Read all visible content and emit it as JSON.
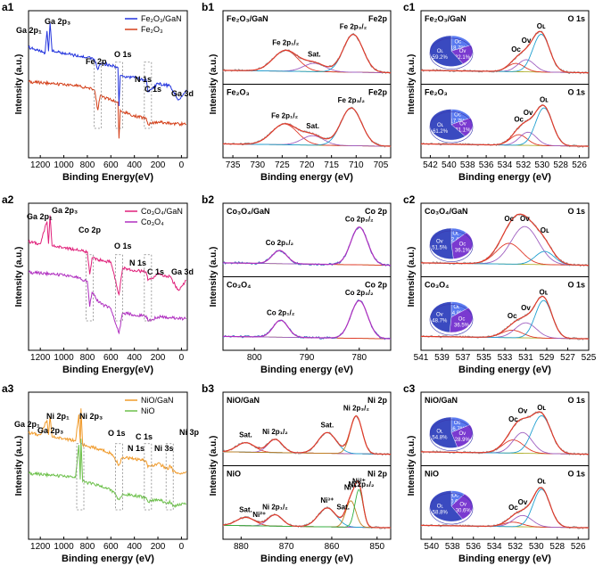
{
  "chart_data": [
    {
      "id": "a1",
      "type": "line",
      "panel_label": "a1",
      "xlabel": "Binding Energy(eV)",
      "ylabel": "Intensity (a.u.)",
      "xlim": [
        1300,
        -50
      ],
      "xticks": [
        1200,
        1000,
        800,
        600,
        400,
        200,
        0
      ],
      "legend": [
        {
          "name": "Fe₂O₃/GaN",
          "color": "#2233dd"
        },
        {
          "name": "Fe₂O₃",
          "color": "#d4401a"
        }
      ],
      "annotations": [
        "Ga 2p₁",
        "Ga 2p₃",
        "Fe 2p",
        "O 1s",
        "N 1s",
        "C 1s",
        "Ga 3d"
      ],
      "series": [
        {
          "name": "Fe₂O₃/GaN",
          "color": "#2233dd",
          "x": [
            1300,
            1250,
            1200,
            1160,
            1143,
            1130,
            1117,
            1100,
            1000,
            900,
            800,
            740,
            711,
            690,
            600,
            540,
            531,
            520,
            400,
            300,
            285,
            200,
            100,
            25,
            -40
          ],
          "y": [
            0.74,
            0.72,
            0.7,
            0.68,
            0.9,
            0.7,
            0.98,
            0.7,
            0.68,
            0.66,
            0.64,
            0.62,
            0.52,
            0.58,
            0.56,
            0.54,
            0.16,
            0.46,
            0.44,
            0.42,
            0.3,
            0.38,
            0.36,
            0.22,
            0.32
          ]
        },
        {
          "name": "Fe₂O₃",
          "color": "#d4401a",
          "x": [
            1300,
            1200,
            1100,
            1000,
            900,
            800,
            740,
            711,
            690,
            600,
            540,
            531,
            520,
            400,
            300,
            285,
            200,
            100,
            -40
          ],
          "y": [
            0.4,
            0.39,
            0.38,
            0.37,
            0.36,
            0.34,
            0.32,
            0.12,
            0.26,
            0.22,
            0.2,
            -0.16,
            0.12,
            0.06,
            0.04,
            -0.02,
            0.0,
            -0.01,
            -0.02
          ]
        }
      ]
    },
    {
      "id": "b1",
      "type": "line",
      "panel_label": "b1",
      "xlabel": "Binding energy (eV)",
      "ylabel": "Intensity (a.u.)",
      "xlim": [
        737,
        703
      ],
      "xticks": [
        735,
        730,
        725,
        720,
        715,
        710,
        705
      ],
      "subpanels": [
        {
          "sample": "Fe₂O₃/GaN",
          "region": "Fe2p",
          "peaks": [
            "Fe 2p₁/₂",
            "Sat.",
            "Fe 2p₃/₂"
          ],
          "fit": [
            {
              "name": "Fe 2p1/2",
              "center": 724.3,
              "height": 0.55,
              "width": 2.5
            },
            {
              "name": "Sat.",
              "center": 718.5,
              "height": 0.22,
              "width": 2.2
            },
            {
              "name": "Fe 2p3/2",
              "center": 710.6,
              "height": 1.0,
              "width": 2.0
            }
          ]
        },
        {
          "sample": "Fe₂O₃",
          "region": "Fe2p",
          "peaks": [
            "Fe 2p₁/₂",
            "Sat.",
            "Fe 2p₃/₂"
          ],
          "fit": [
            {
              "name": "Fe 2p1/2",
              "center": 724.5,
              "height": 0.55,
              "width": 2.6
            },
            {
              "name": "Sat.",
              "center": 718.8,
              "height": 0.25,
              "width": 2.2
            },
            {
              "name": "Fe 2p3/2",
              "center": 711.0,
              "height": 1.0,
              "width": 2.1
            }
          ]
        }
      ]
    },
    {
      "id": "c1",
      "type": "line",
      "panel_label": "c1",
      "xlabel": "Binding energy (eV)",
      "ylabel": "Intensity (a.u.)",
      "xlim": [
        543,
        525
      ],
      "xticks": [
        542,
        540,
        538,
        536,
        534,
        532,
        530,
        528,
        526
      ],
      "subpanels": [
        {
          "sample": "Fe₂O₃/GaN",
          "region": "O 1s",
          "peaks": [
            "Oᴄ",
            "Oᴠ",
            "Oʟ"
          ],
          "pie": [
            {
              "label": "Oᴄ",
              "value": 18.7
            },
            {
              "label": "Oᴠ",
              "value": 22.1
            },
            {
              "label": "Oʟ",
              "value": 59.2
            }
          ],
          "fit": [
            {
              "name": "OC",
              "center": 532.8,
              "height": 0.22,
              "width": 0.9
            },
            {
              "name": "OV",
              "center": 531.7,
              "height": 0.32,
              "width": 0.9
            },
            {
              "name": "OL",
              "center": 530.1,
              "height": 1.0,
              "width": 0.9
            }
          ]
        },
        {
          "sample": "Fe₂O₃",
          "region": "O 1s",
          "peaks": [
            "Oᴄ",
            "Oᴠ",
            "Oʟ"
          ],
          "pie": [
            {
              "label": "Oᴄ",
              "value": 17.7
            },
            {
              "label": "Oᴠ",
              "value": 21.1
            },
            {
              "label": "Oʟ",
              "value": 61.2
            }
          ],
          "fit": [
            {
              "name": "OC",
              "center": 532.5,
              "height": 0.28,
              "width": 0.9
            },
            {
              "name": "OV",
              "center": 531.5,
              "height": 0.35,
              "width": 0.9
            },
            {
              "name": "OL",
              "center": 529.8,
              "height": 1.0,
              "width": 0.9
            }
          ]
        }
      ]
    },
    {
      "id": "a2",
      "type": "line",
      "panel_label": "a2",
      "xlabel": "Binding Energy(eV)",
      "ylabel": "Intensity (a.u.)",
      "xlim": [
        1300,
        -50
      ],
      "xticks": [
        1200,
        1000,
        800,
        600,
        400,
        200,
        0
      ],
      "legend": [
        {
          "name": "Co₃O₄/GaN",
          "color": "#e0207a"
        },
        {
          "name": "Co₃O₄",
          "color": "#b030c0"
        }
      ],
      "annotations": [
        "Ga 2p₁",
        "Ga 2p₃",
        "Co 2p",
        "O 1s",
        "N 1s",
        "C 1s",
        "Ga 3d"
      ],
      "series": [
        {
          "name": "Co₃O₄/GaN",
          "color": "#e0207a",
          "x": [
            1300,
            1200,
            1143,
            1130,
            1117,
            1100,
            1000,
            900,
            800,
            780,
            760,
            700,
            600,
            531,
            500,
            400,
            300,
            285,
            200,
            100,
            25,
            -40
          ],
          "y": [
            0.72,
            0.7,
            0.92,
            0.7,
            0.98,
            0.68,
            0.66,
            0.64,
            0.62,
            0.4,
            0.56,
            0.54,
            0.52,
            0.2,
            0.46,
            0.44,
            0.42,
            0.34,
            0.4,
            0.38,
            0.24,
            0.34
          ]
        },
        {
          "name": "Co₃O₄",
          "color": "#b030c0",
          "x": [
            1300,
            1200,
            1100,
            1000,
            900,
            800,
            780,
            760,
            700,
            600,
            531,
            500,
            400,
            300,
            285,
            200,
            100,
            -40
          ],
          "y": [
            0.42,
            0.41,
            0.4,
            0.39,
            0.37,
            0.33,
            0.08,
            0.22,
            0.12,
            0.06,
            -0.18,
            0.02,
            0.0,
            -0.01,
            -0.06,
            -0.02,
            -0.03,
            -0.04
          ]
        }
      ]
    },
    {
      "id": "b2",
      "type": "line",
      "panel_label": "b2",
      "xlabel": "Binding energy (eV)",
      "ylabel": "Intensity (a.u.)",
      "xlim": [
        806,
        774
      ],
      "xticks": [
        800,
        790,
        780
      ],
      "subpanels": [
        {
          "sample": "Co₃O₄/GaN",
          "region": "Co 2p",
          "peaks": [
            "Co 2p₁/₂",
            "Co 2p₃/₂"
          ],
          "fit": [
            {
              "name": "Co 2p1/2",
              "center": 795.2,
              "height": 0.35,
              "width": 1.4
            },
            {
              "name": "Co 2p3/2",
              "center": 780.0,
              "height": 1.0,
              "width": 1.6
            }
          ]
        },
        {
          "sample": "Co₃O₄",
          "region": "Co 2p",
          "peaks": [
            "Co 2p₁/₂",
            "Co 2p₃/₂"
          ],
          "fit": [
            {
              "name": "Co 2p1/2",
              "center": 795.0,
              "height": 0.45,
              "width": 1.4
            },
            {
              "name": "Co 2p3/2",
              "center": 780.0,
              "height": 1.0,
              "width": 1.6
            }
          ]
        }
      ]
    },
    {
      "id": "c2",
      "type": "line",
      "panel_label": "c2",
      "xlabel": "Binding energy (eV)",
      "ylabel": "Intensity (a.u.)",
      "xlim": [
        541,
        525
      ],
      "xticks": [
        541,
        539,
        537,
        535,
        533,
        531,
        529,
        527,
        525
      ],
      "subpanels": [
        {
          "sample": "Co₃O₄/GaN",
          "region": "O 1s",
          "peaks": [
            "Oᴄ",
            "Oᴠ",
            "Oʟ"
          ],
          "pie": [
            {
              "label": "Oʟ",
              "value": 12.4
            },
            {
              "label": "Oᴄ",
              "value": 36.1
            },
            {
              "label": "Oᴠ",
              "value": 51.5
            }
          ],
          "fit": [
            {
              "name": "OC",
              "center": 532.6,
              "height": 0.55,
              "width": 1.2
            },
            {
              "name": "OV",
              "center": 531.1,
              "height": 1.0,
              "width": 1.3
            },
            {
              "name": "OL",
              "center": 529.2,
              "height": 0.35,
              "width": 0.9
            }
          ]
        },
        {
          "sample": "Co₃O₄",
          "region": "O 1s",
          "peaks": [
            "Oᴄ",
            "Oᴠ",
            "Oʟ"
          ],
          "pie": [
            {
              "label": "Oʟ",
              "value": 14.8
            },
            {
              "label": "Oᴄ",
              "value": 36.5
            },
            {
              "label": "Oᴠ",
              "value": 48.7
            }
          ],
          "fit": [
            {
              "name": "OC",
              "center": 532.3,
              "height": 0.2,
              "width": 1.0
            },
            {
              "name": "OV",
              "center": 531.0,
              "height": 0.4,
              "width": 1.0
            },
            {
              "name": "OL",
              "center": 529.3,
              "height": 1.0,
              "width": 0.8
            }
          ]
        }
      ]
    },
    {
      "id": "a3",
      "type": "line",
      "panel_label": "a3",
      "xlabel": "Binding energy (eV)",
      "ylabel": "Intensity (a.u.)",
      "xlim": [
        1300,
        -50
      ],
      "xticks": [
        1200,
        1000,
        800,
        600,
        400,
        200,
        0
      ],
      "legend": [
        {
          "name": "NiO/GaN",
          "color": "#f09a2a"
        },
        {
          "name": "NiO",
          "color": "#6cc04a"
        }
      ],
      "annotations": [
        "Ga 2p₁",
        "Ga 2p₃",
        "Ni 2p₁",
        "Ni 2p₃",
        "O 1s",
        "N 1s",
        "C 1s",
        "Ni 3s",
        "Ni 3p"
      ],
      "series": [
        {
          "name": "NiO/GaN",
          "color": "#f09a2a",
          "x": [
            1300,
            1200,
            1143,
            1130,
            1117,
            1100,
            1000,
            900,
            872,
            860,
            854,
            840,
            700,
            600,
            531,
            500,
            400,
            300,
            285,
            200,
            111,
            100,
            67,
            25,
            -40
          ],
          "y": [
            0.7,
            0.68,
            0.82,
            0.68,
            0.86,
            0.66,
            0.64,
            0.62,
            0.88,
            0.6,
            0.94,
            0.58,
            0.54,
            0.5,
            0.38,
            0.46,
            0.44,
            0.42,
            0.36,
            0.4,
            0.34,
            0.38,
            0.32,
            0.3,
            0.32
          ]
        },
        {
          "name": "NiO",
          "color": "#6cc04a",
          "x": [
            1300,
            1200,
            1100,
            1000,
            900,
            872,
            860,
            854,
            840,
            700,
            600,
            531,
            500,
            400,
            300,
            285,
            200,
            111,
            100,
            67,
            -40
          ],
          "y": [
            0.3,
            0.29,
            0.28,
            0.27,
            0.26,
            0.58,
            0.24,
            0.64,
            0.22,
            0.18,
            0.14,
            0.04,
            0.1,
            0.08,
            0.06,
            0.02,
            0.04,
            0.0,
            0.03,
            -0.02,
            0.0
          ]
        }
      ]
    },
    {
      "id": "b3",
      "type": "line",
      "panel_label": "b3",
      "xlabel": "Binding energy (eV)",
      "ylabel": "Intensity (a.u.)",
      "xlim": [
        884,
        847
      ],
      "xticks": [
        880,
        870,
        860,
        850
      ],
      "subpanels": [
        {
          "sample": "NiO/GaN",
          "region": "Ni 2p",
          "peaks": [
            "Sat.",
            "Ni 2p₁/₂",
            "Sat.",
            "Ni 2p₃/₂"
          ],
          "fit": [
            {
              "name": "Sat.",
              "center": 879.0,
              "height": 0.25,
              "width": 2.0
            },
            {
              "name": "Ni 2p1/2",
              "center": 872.5,
              "height": 0.35,
              "width": 1.6
            },
            {
              "name": "Sat.",
              "center": 861.0,
              "height": 0.55,
              "width": 2.0
            },
            {
              "name": "Ni 2p3/2",
              "center": 854.6,
              "height": 1.0,
              "width": 1.3
            }
          ]
        },
        {
          "sample": "NiO",
          "region": "Ni 2p",
          "peaks": [
            "Sat.",
            "Ni 2p₁/₂",
            "Ni²⁺",
            "Ni³⁺",
            "Sat.",
            "Ni 2p₃/₂",
            "Ni³⁺",
            "Ni²⁺"
          ],
          "fit": [
            {
              "name": "Sat.",
              "center": 879.0,
              "height": 0.22,
              "width": 2.0
            },
            {
              "name": "Ni 2p1/2",
              "center": 872.5,
              "height": 0.3,
              "width": 1.6
            },
            {
              "name": "Sat.",
              "center": 861.0,
              "height": 0.5,
              "width": 2.0
            },
            {
              "name": "Ni3+",
              "center": 855.8,
              "height": 0.7,
              "width": 1.1
            },
            {
              "name": "Ni2+",
              "center": 854.0,
              "height": 1.0,
              "width": 0.9
            }
          ]
        }
      ]
    },
    {
      "id": "c3",
      "type": "line",
      "panel_label": "c3",
      "xlabel": "Binding energy (eV)",
      "ylabel": "Intensity (a.u.)",
      "xlim": [
        541,
        525
      ],
      "xticks": [
        540,
        538,
        536,
        534,
        532,
        530,
        528,
        526
      ],
      "subpanels": [
        {
          "sample": "NiO/GaN",
          "region": "O 1s",
          "peaks": [
            "Oᴄ",
            "Oᴠ",
            "Oʟ"
          ],
          "pie": [
            {
              "label": "Oᴄ",
              "value": 16.7
            },
            {
              "label": "Oᴠ",
              "value": 28.9
            },
            {
              "label": "Oʟ",
              "value": 54.8
            }
          ],
          "fit": [
            {
              "name": "OC",
              "center": 532.2,
              "height": 0.35,
              "width": 1.0
            },
            {
              "name": "OV",
              "center": 531.3,
              "height": 0.55,
              "width": 0.9
            },
            {
              "name": "OL",
              "center": 529.5,
              "height": 1.0,
              "width": 0.9
            }
          ]
        },
        {
          "sample": "NiO",
          "region": "O 1s",
          "peaks": [
            "Oᴄ",
            "Oᴠ",
            "Oʟ"
          ],
          "pie": [
            {
              "label": "Oᴄ",
              "value": 10.6
            },
            {
              "label": "Oᴠ",
              "value": 30.6
            },
            {
              "label": "Oʟ",
              "value": 58.8
            }
          ],
          "fit": [
            {
              "name": "OC",
              "center": 532.2,
              "height": 0.12,
              "width": 0.9
            },
            {
              "name": "OV",
              "center": 531.3,
              "height": 0.3,
              "width": 0.9
            },
            {
              "name": "OL",
              "center": 529.5,
              "height": 1.0,
              "width": 0.8
            }
          ]
        }
      ]
    }
  ]
}
